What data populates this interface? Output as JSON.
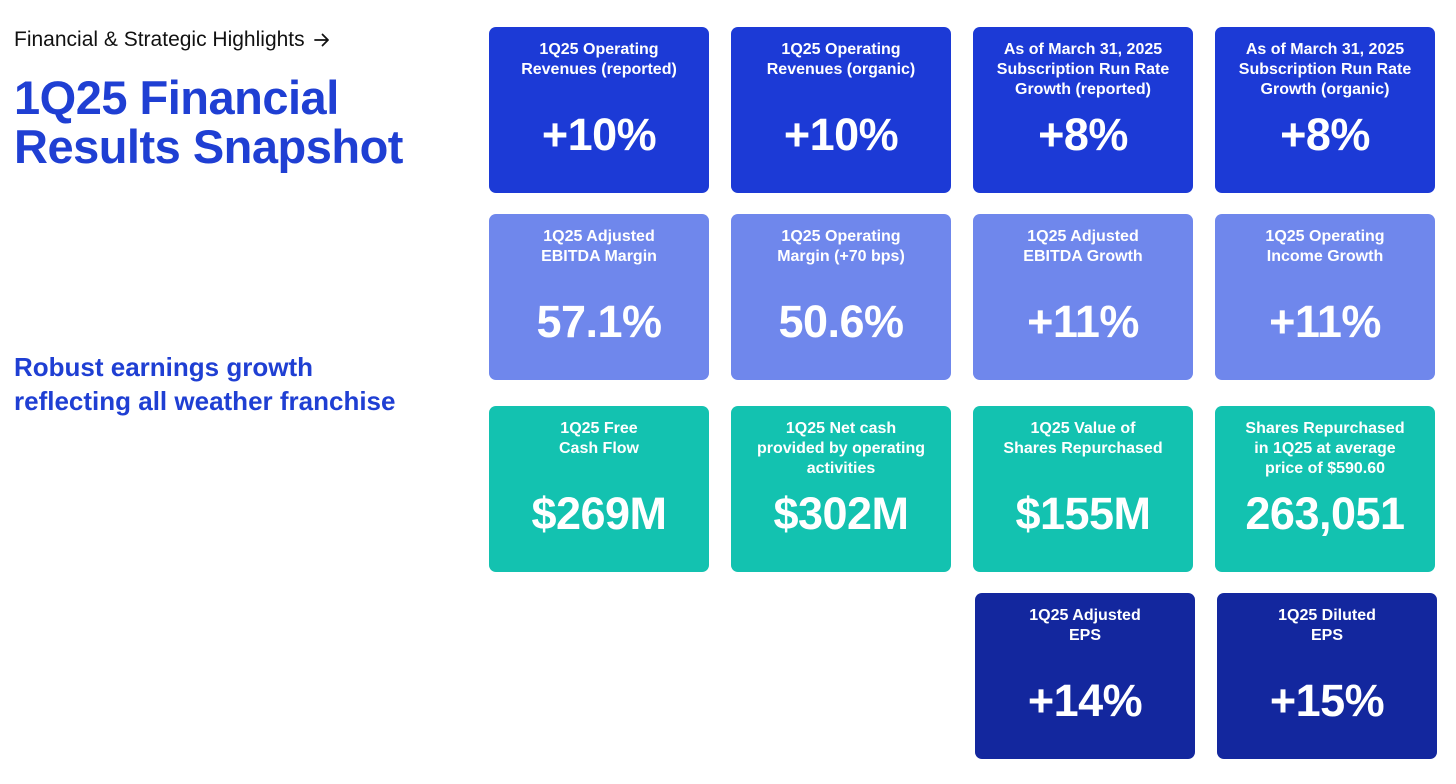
{
  "header": {
    "breadcrumb": "Financial & Strategic Highlights",
    "breadcrumb_icon": "arrow-right-icon",
    "title_line1": "1Q25 Financial",
    "title_line2": "Results Snapshot"
  },
  "tagline": {
    "line1": "Robust earnings growth",
    "line2": "reflecting all weather franchise"
  },
  "colors": {
    "title": "#1f3fd3",
    "tile_blue": "#1c3ad6",
    "tile_light_blue": "#6f87ec",
    "tile_teal": "#13c2b0",
    "tile_navy": "#13279e"
  },
  "tiles": [
    {
      "label": [
        "1Q25 Operating",
        "Revenues (reported)"
      ],
      "value": "+10%"
    },
    {
      "label": [
        "1Q25 Operating",
        "Revenues (organic)"
      ],
      "value": "+10%"
    },
    {
      "label": [
        "As of March 31, 2025",
        "Subscription Run Rate",
        "Growth (reported)"
      ],
      "value": "+8%"
    },
    {
      "label": [
        "As of March 31, 2025",
        "Subscription Run Rate",
        "Growth (organic)"
      ],
      "value": "+8%"
    },
    {
      "label": [
        "1Q25 Adjusted",
        "EBITDA Margin"
      ],
      "value": "57.1%"
    },
    {
      "label": [
        "1Q25 Operating",
        "Margin (+70 bps)"
      ],
      "value": "50.6%"
    },
    {
      "label": [
        "1Q25 Adjusted",
        "EBITDA Growth"
      ],
      "value": "+11%"
    },
    {
      "label": [
        "1Q25 Operating",
        "Income Growth"
      ],
      "value": "+11%"
    },
    {
      "label": [
        "1Q25 Free",
        "Cash Flow"
      ],
      "value": "$269M"
    },
    {
      "label": [
        "1Q25 Net cash",
        "provided by operating",
        "activities"
      ],
      "value": "$302M"
    },
    {
      "label": [
        "1Q25 Value of",
        "Shares Repurchased"
      ],
      "value": "$155M"
    },
    {
      "label": [
        "Shares Repurchased",
        "in 1Q25 at average",
        "price of $590.60"
      ],
      "value": "263,051"
    },
    {
      "label": [
        "1Q25 Adjusted",
        "EPS"
      ],
      "value": "+14%"
    },
    {
      "label": [
        "1Q25 Diluted",
        "EPS"
      ],
      "value": "+15%"
    }
  ]
}
